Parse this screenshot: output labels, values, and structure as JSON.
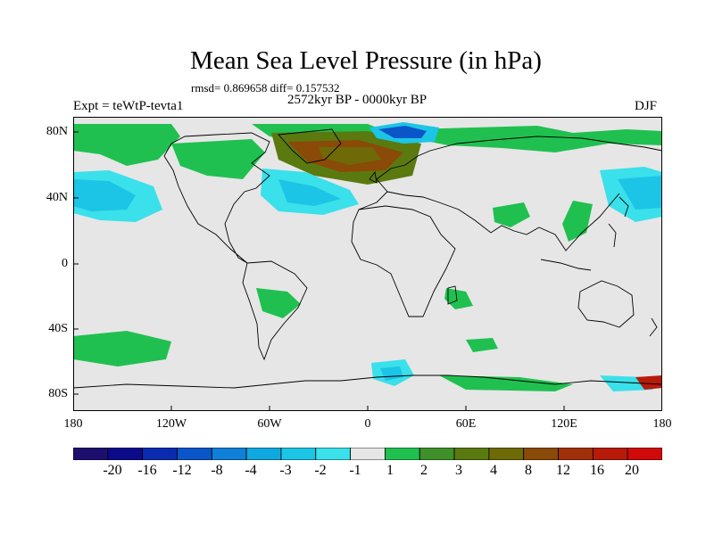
{
  "title": "Mean Sea Level Pressure (in hPa)",
  "stats": "rmsd= 0.869658 diff= 0.157532",
  "period": "2572kyr BP - 0000kyr BP",
  "experiment": "Expt = teWtP-tevta1",
  "season": "DJF",
  "lat_labels": [
    "80N",
    "40N",
    "0",
    "40S",
    "80S"
  ],
  "lon_labels": [
    "180",
    "120W",
    "60W",
    "0",
    "60E",
    "120E",
    "180"
  ],
  "colorbar": {
    "labels": [
      "-20",
      "-16",
      "-12",
      "-8",
      "-4",
      "-3",
      "-2",
      "-1",
      "1",
      "2",
      "3",
      "4",
      "8",
      "12",
      "16",
      "20"
    ],
    "colors": [
      "#1c0f6e",
      "#0b0b8a",
      "#0a2bb0",
      "#0a56c8",
      "#0f7fd8",
      "#10a8e0",
      "#1cc4e6",
      "#3ae0ea",
      "#e6e6e6",
      "#20c050",
      "#3f8f2a",
      "#5a7a10",
      "#6e6a08",
      "#8a4a08",
      "#a0300a",
      "#b81a0a",
      "#d00a0a"
    ]
  },
  "colors": {
    "background_field": "#e6e6e6",
    "coast": "#000000"
  }
}
